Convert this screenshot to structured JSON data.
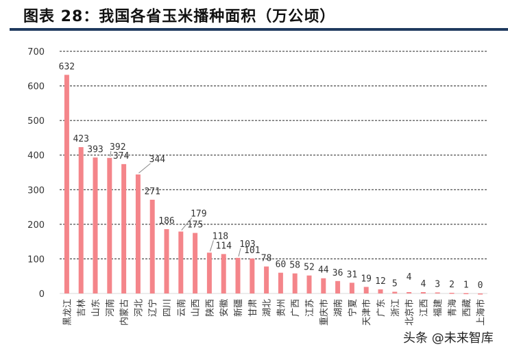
{
  "title": "图表 28：我国各省玉米播种面积（万公顷）",
  "watermark": "头条 @未来智库",
  "chart_data": {
    "type": "bar",
    "title": "图表 28：我国各省玉米播种面积（万公顷）",
    "categories": [
      "黑龙江",
      "吉林",
      "山东",
      "河南",
      "内蒙古",
      "河北",
      "辽宁",
      "四川",
      "云南",
      "山西",
      "陕西",
      "安徽",
      "新疆",
      "甘肃",
      "湖北",
      "贵州",
      "广西",
      "江苏",
      "重庆市",
      "湖南",
      "宁夏",
      "天津市",
      "广东",
      "浙江",
      "北京市",
      "江西",
      "福建",
      "青海",
      "西藏",
      "上海市"
    ],
    "values": [
      632,
      423,
      393,
      392,
      374,
      344,
      271,
      186,
      179,
      175,
      118,
      114,
      103,
      101,
      78,
      60,
      58,
      52,
      44,
      36,
      31,
      19,
      12,
      5,
      4,
      4,
      3,
      2,
      1,
      0
    ],
    "ylim": [
      0,
      700
    ],
    "yticks": [
      0,
      100,
      200,
      300,
      400,
      500,
      600,
      700
    ],
    "grid": true,
    "bar_color": "#f4858a",
    "data_labels": true
  }
}
